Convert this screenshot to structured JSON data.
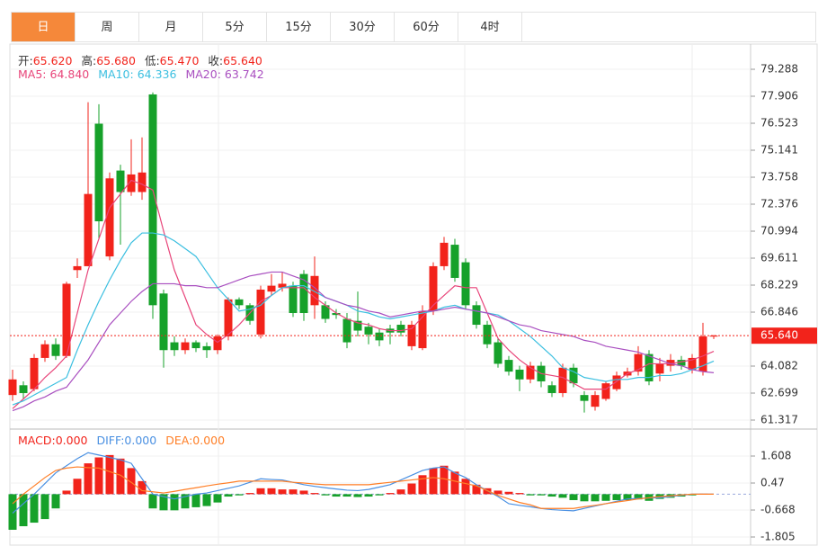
{
  "tabs": [
    "日",
    "周",
    "月",
    "5分",
    "15分",
    "30分",
    "60分",
    "4时"
  ],
  "active_tab": 0,
  "chart_data": [
    {
      "type": "candlestick",
      "up_color": "#f2231b",
      "down_color": "#16a12a",
      "grid": true,
      "info": [
        {
          "label": "开:",
          "value": "65.620"
        },
        {
          "label": "高:",
          "value": "65.680"
        },
        {
          "label": "低:",
          "value": "65.470"
        },
        {
          "label": "收:",
          "value": "65.640"
        }
      ],
      "ylim": [
        60.856,
        80.533
      ],
      "yticks": [
        79.288,
        77.906,
        76.523,
        75.141,
        73.758,
        72.376,
        70.994,
        69.611,
        68.229,
        66.846,
        64.082,
        62.699,
        61.317
      ],
      "last_price": {
        "value": 65.64,
        "label": "65.640"
      },
      "open": [
        62.6,
        63.1,
        62.9,
        64.5,
        65.2,
        64.6,
        69.0,
        69.2,
        76.5,
        69.7,
        74.1,
        73.0,
        73.0,
        78.0,
        67.8,
        65.3,
        64.9,
        65.3,
        65.1,
        64.9,
        65.6,
        67.5,
        67.2,
        65.7,
        67.9,
        68.1,
        68.2,
        68.8,
        67.2,
        67.2,
        66.8,
        66.5,
        66.4,
        66.1,
        65.8,
        66.0,
        66.2,
        65.1,
        65.0,
        66.9,
        69.2,
        70.3,
        69.4,
        67.2,
        66.2,
        65.3,
        64.4,
        63.9,
        63.4,
        64.1,
        63.1,
        62.7,
        64.0,
        62.6,
        62.0,
        62.4,
        62.9,
        63.6,
        63.8,
        64.7,
        63.7,
        64.1,
        64.4,
        63.9,
        63.8,
        65.62
      ],
      "high": [
        63.9,
        63.3,
        64.7,
        65.4,
        65.5,
        68.4,
        69.6,
        77.6,
        77.5,
        74.0,
        74.4,
        75.7,
        75.8,
        78.1,
        68.0,
        65.6,
        65.5,
        65.4,
        65.3,
        65.7,
        67.6,
        67.6,
        67.3,
        68.2,
        68.8,
        68.9,
        68.4,
        69.0,
        69.7,
        67.4,
        67.0,
        66.8,
        67.9,
        66.3,
        66.0,
        66.2,
        66.4,
        66.4,
        67.2,
        69.4,
        70.7,
        70.6,
        69.6,
        67.4,
        66.4,
        65.5,
        64.6,
        64.1,
        64.3,
        64.3,
        63.3,
        64.2,
        64.2,
        62.8,
        62.8,
        63.3,
        63.8,
        64.0,
        65.1,
        64.9,
        64.5,
        64.7,
        64.6,
        64.7,
        66.3,
        65.68
      ],
      "low": [
        62.3,
        62.4,
        62.8,
        64.3,
        64.4,
        64.5,
        68.6,
        69.2,
        70.6,
        69.5,
        70.3,
        72.8,
        72.6,
        66.5,
        64.0,
        64.6,
        64.7,
        64.8,
        64.5,
        64.7,
        65.4,
        67.0,
        66.2,
        65.5,
        67.7,
        67.9,
        66.6,
        66.4,
        66.5,
        66.3,
        66.5,
        65.0,
        65.6,
        65.2,
        65.1,
        65.2,
        65.6,
        64.9,
        64.9,
        66.7,
        69.0,
        68.4,
        67.0,
        66.0,
        65.0,
        64.0,
        63.6,
        62.8,
        63.2,
        63.0,
        62.5,
        62.5,
        63.0,
        61.7,
        61.8,
        62.3,
        62.8,
        63.5,
        63.6,
        63.1,
        63.3,
        63.8,
        63.9,
        63.7,
        63.6,
        65.47
      ],
      "close": [
        63.4,
        62.7,
        64.5,
        65.2,
        64.6,
        68.3,
        69.2,
        72.9,
        71.5,
        73.7,
        73.0,
        73.9,
        74.0,
        67.2,
        64.9,
        64.9,
        65.3,
        65.0,
        64.9,
        65.6,
        67.5,
        67.2,
        66.4,
        68.0,
        68.2,
        68.3,
        66.8,
        66.8,
        68.7,
        66.5,
        66.7,
        65.3,
        65.9,
        65.7,
        65.4,
        65.8,
        65.8,
        66.2,
        66.9,
        69.2,
        70.4,
        68.6,
        67.2,
        66.2,
        65.2,
        64.2,
        63.8,
        63.4,
        64.1,
        63.3,
        62.7,
        64.0,
        63.2,
        62.3,
        62.6,
        63.2,
        63.6,
        63.8,
        64.7,
        63.3,
        64.2,
        64.4,
        64.1,
        64.5,
        65.6,
        65.64
      ],
      "ma": [
        {
          "name": "MA5:",
          "value_label": "64.840",
          "color": "#e8457a",
          "values": [
            61.9,
            62.4,
            62.9,
            63.5,
            64.0,
            64.6,
            66.8,
            69.0,
            70.6,
            72.2,
            72.9,
            73.6,
            73.4,
            73.1,
            71.0,
            69.0,
            67.6,
            66.2,
            65.7,
            65.3,
            65.7,
            66.2,
            66.8,
            67.4,
            67.7,
            68.1,
            68.1,
            68.1,
            67.6,
            67.2,
            66.8,
            66.5,
            66.3,
            66.2,
            66.0,
            65.9,
            65.9,
            66.0,
            66.6,
            67.2,
            67.7,
            68.2,
            68.1,
            68.1,
            66.8,
            65.5,
            64.9,
            64.4,
            64.0,
            63.7,
            63.6,
            63.5,
            63.2,
            62.9,
            62.9,
            62.9,
            63.3,
            63.7,
            63.9,
            64.2,
            64.2,
            64.2,
            64.3,
            64.4,
            64.6,
            64.84
          ]
        },
        {
          "name": "MA10:",
          "value_label": "64.336",
          "color": "#3bbfe0",
          "values": [
            62.1,
            62.3,
            62.6,
            62.9,
            63.2,
            63.5,
            64.9,
            66.2,
            67.4,
            68.5,
            69.5,
            70.4,
            70.9,
            70.9,
            70.8,
            70.5,
            70.1,
            69.7,
            68.9,
            68.1,
            67.5,
            66.9,
            67.0,
            67.2,
            67.7,
            68.1,
            68.2,
            68.2,
            67.9,
            67.6,
            67.4,
            67.2,
            66.9,
            66.8,
            66.6,
            66.5,
            66.6,
            66.7,
            66.8,
            66.9,
            67.1,
            67.2,
            67.0,
            66.9,
            66.8,
            66.7,
            66.4,
            66.0,
            65.6,
            65.1,
            64.6,
            64.0,
            63.8,
            63.5,
            63.4,
            63.3,
            63.4,
            63.4,
            63.5,
            63.5,
            63.6,
            63.6,
            63.7,
            63.9,
            64.1,
            64.336
          ]
        },
        {
          "name": "MA20:",
          "value_label": "63.742",
          "color": "#a94fc0",
          "values": [
            61.8,
            62.0,
            62.3,
            62.5,
            62.8,
            63.0,
            63.7,
            64.4,
            65.3,
            66.2,
            66.8,
            67.4,
            67.9,
            68.3,
            68.3,
            68.3,
            68.2,
            68.2,
            68.1,
            68.1,
            68.3,
            68.5,
            68.7,
            68.8,
            68.9,
            68.9,
            68.7,
            68.5,
            68.1,
            67.6,
            67.4,
            67.2,
            67.1,
            66.9,
            66.8,
            66.6,
            66.7,
            66.8,
            66.9,
            66.9,
            67.0,
            67.1,
            67.0,
            66.9,
            66.8,
            66.6,
            66.4,
            66.2,
            66.1,
            65.9,
            65.8,
            65.7,
            65.6,
            65.4,
            65.3,
            65.1,
            65.0,
            64.9,
            64.8,
            64.6,
            64.4,
            64.2,
            64.1,
            63.9,
            63.8,
            63.742
          ]
        }
      ]
    },
    {
      "type": "macd",
      "up_color": "#f2231b",
      "down_color": "#16a12a",
      "grid": true,
      "ylim": [
        -2.184,
        2.707
      ],
      "yticks": [
        1.608,
        0.47,
        {
          "value": -0.668,
          "label": "-0.668"
        },
        {
          "value": -1.805,
          "label": "-1.805"
        }
      ],
      "legend": [
        {
          "label": "MACD:",
          "value": "0.000",
          "color": "#f2231b"
        },
        {
          "label": "DIFF:",
          "value": "0.000",
          "color": "#4a90e2"
        },
        {
          "label": "DEA:",
          "value": "0.000",
          "color": "#ff7f27"
        }
      ],
      "values": [
        -1.5,
        -1.35,
        -1.2,
        -1.05,
        -0.6,
        0.15,
        0.65,
        1.3,
        1.55,
        1.65,
        1.5,
        1.1,
        0.55,
        -0.6,
        -0.68,
        -0.68,
        -0.6,
        -0.55,
        -0.5,
        -0.35,
        -0.1,
        -0.05,
        0.05,
        0.25,
        0.25,
        0.2,
        0.2,
        0.15,
        0.05,
        -0.05,
        -0.1,
        -0.1,
        -0.12,
        -0.1,
        -0.05,
        0.05,
        0.2,
        0.45,
        0.8,
        1.1,
        1.2,
        0.95,
        0.65,
        0.4,
        0.25,
        0.15,
        0.1,
        0.05,
        -0.05,
        -0.05,
        -0.1,
        -0.15,
        -0.25,
        -0.3,
        -0.3,
        -0.28,
        -0.25,
        -0.25,
        -0.22,
        -0.28,
        -0.2,
        -0.15,
        -0.1,
        -0.05,
        0.02,
        0.0
      ],
      "series": [
        {
          "name": "DIFF",
          "color": "#4a90e2",
          "values": [
            -0.8,
            -0.4,
            0.0,
            0.45,
            0.9,
            1.2,
            1.5,
            1.75,
            1.65,
            1.55,
            1.45,
            1.3,
            0.65,
            0.0,
            -0.1,
            -0.2,
            -0.1,
            0.0,
            0.05,
            0.15,
            0.25,
            0.35,
            0.5,
            0.65,
            0.62,
            0.6,
            0.5,
            0.4,
            0.33,
            0.27,
            0.22,
            0.17,
            0.15,
            0.2,
            0.3,
            0.4,
            0.6,
            0.8,
            1.0,
            1.1,
            1.15,
            0.9,
            0.7,
            0.4,
            0.15,
            -0.1,
            -0.4,
            -0.47,
            -0.53,
            -0.6,
            -0.65,
            -0.68,
            -0.7,
            -0.6,
            -0.5,
            -0.4,
            -0.3,
            -0.2,
            -0.18,
            -0.16,
            -0.15,
            -0.1,
            -0.05,
            0.0,
            0.0,
            0.0
          ]
        },
        {
          "name": "DEA",
          "color": "#ff7f27",
          "values": [
            -0.4,
            0.0,
            0.35,
            0.7,
            1.0,
            1.1,
            1.15,
            1.12,
            1.1,
            0.95,
            0.8,
            0.5,
            0.15,
            0.1,
            0.05,
            0.12,
            0.2,
            0.27,
            0.35,
            0.42,
            0.48,
            0.55,
            0.55,
            0.55,
            0.55,
            0.55,
            0.5,
            0.47,
            0.43,
            0.4,
            0.4,
            0.4,
            0.4,
            0.4,
            0.45,
            0.5,
            0.55,
            0.6,
            0.65,
            0.7,
            0.65,
            0.55,
            0.45,
            0.35,
            0.15,
            -0.05,
            -0.2,
            -0.35,
            -0.45,
            -0.6,
            -0.6,
            -0.6,
            -0.6,
            -0.53,
            -0.47,
            -0.4,
            -0.33,
            -0.27,
            -0.2,
            -0.15,
            -0.1,
            -0.07,
            -0.03,
            0.0,
            0.0,
            0.0
          ]
        }
      ]
    }
  ]
}
